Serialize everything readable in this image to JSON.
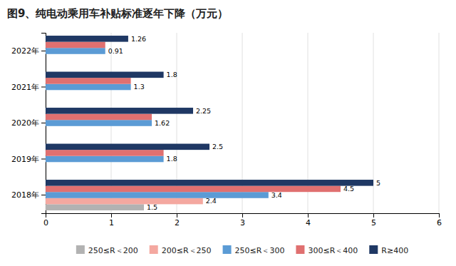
{
  "chart_data": {
    "type": "bar",
    "orientation": "horizontal",
    "title": "图9、纯电动乘用车补贴标准逐年下降（万元）",
    "categories": [
      "2018年",
      "2019年",
      "2020年",
      "2021年",
      "2022年"
    ],
    "series": [
      {
        "name": "250≤R＜200",
        "color": "#b2b2b2",
        "values": [
          1.5,
          0,
          0,
          0,
          0
        ],
        "value_labels": [
          "1.5",
          null,
          null,
          null,
          null
        ]
      },
      {
        "name": "200≤R＜250",
        "color": "#f4a8a0",
        "values": [
          2.4,
          0,
          0,
          0,
          0
        ],
        "value_labels": [
          "2.4",
          null,
          null,
          null,
          null
        ]
      },
      {
        "name": "250≤R＜300",
        "color": "#5b9bd5",
        "values": [
          3.4,
          1.8,
          1.62,
          1.3,
          0.91
        ],
        "value_labels": [
          "3.4",
          "1.8",
          "1.62",
          "1.3",
          "0.91"
        ]
      },
      {
        "name": "300≤R＜400",
        "color": "#e07070",
        "values": [
          4.5,
          1.8,
          1.62,
          1.3,
          0.91
        ],
        "value_labels": [
          "4.5",
          null,
          null,
          null,
          null
        ]
      },
      {
        "name": "R≥400",
        "color": "#1f3864",
        "values": [
          5,
          2.5,
          2.25,
          1.8,
          1.26
        ],
        "value_labels": [
          "5",
          "2.5",
          "2.25",
          "1.8",
          "1.26"
        ]
      }
    ],
    "xlim": [
      0,
      6
    ],
    "xticks": [
      0,
      1,
      2,
      3,
      4,
      5,
      6
    ],
    "grid": true,
    "legend": "bottom",
    "data_labels": true
  }
}
